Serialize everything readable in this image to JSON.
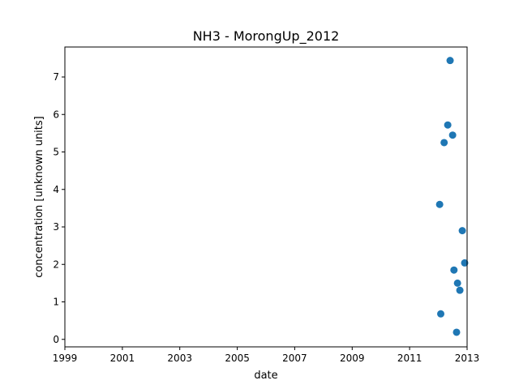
{
  "chart_data": {
    "type": "scatter",
    "title": "NH3 - MorongUp_2012",
    "xlabel": "date",
    "ylabel": "concentration [unknown units]",
    "xlim": [
      "1999-01-01",
      "2013-01-01"
    ],
    "ylim": [
      -0.2,
      7.8
    ],
    "x_ticks": [
      "1999",
      "2001",
      "2003",
      "2005",
      "2007",
      "2009",
      "2011",
      "2013"
    ],
    "y_ticks": [
      0,
      1,
      2,
      3,
      4,
      5,
      6,
      7
    ],
    "grid": false,
    "marker_color": "#1f77b4",
    "points": [
      {
        "x": "2012-01-18",
        "y": 3.6
      },
      {
        "x": "2012-02-01",
        "y": 0.68
      },
      {
        "x": "2012-03-15",
        "y": 5.25
      },
      {
        "x": "2012-04-30",
        "y": 5.72
      },
      {
        "x": "2012-05-30",
        "y": 7.44
      },
      {
        "x": "2012-07-01",
        "y": 5.45
      },
      {
        "x": "2012-07-18",
        "y": 1.85
      },
      {
        "x": "2012-08-20",
        "y": 0.19
      },
      {
        "x": "2012-09-01",
        "y": 1.5
      },
      {
        "x": "2012-10-01",
        "y": 1.31
      },
      {
        "x": "2012-11-01",
        "y": 2.9
      },
      {
        "x": "2012-12-01",
        "y": 2.04
      }
    ]
  }
}
